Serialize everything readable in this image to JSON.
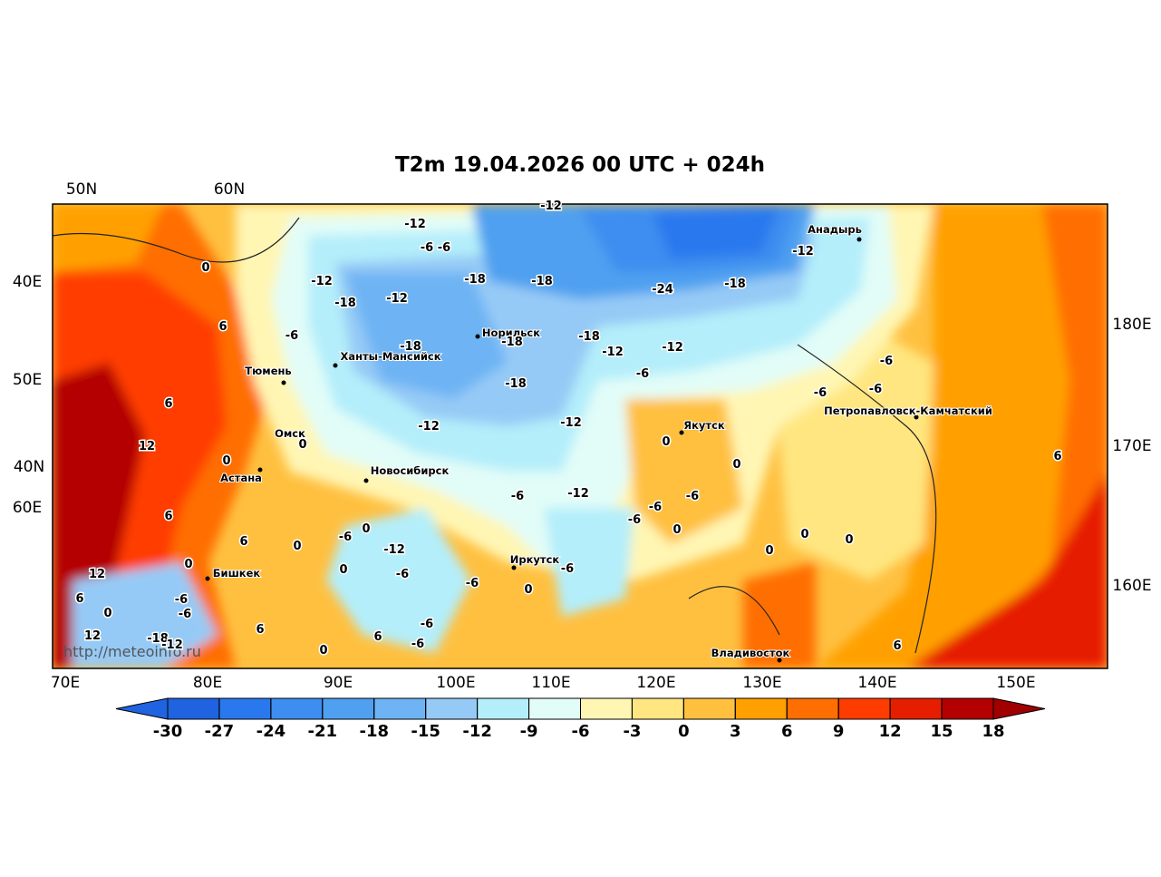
{
  "title": "T2m 19.04.2026 00 UTC + 024h",
  "watermark": "http://meteoinfo.ru",
  "top_labels": [
    "50N",
    "60N"
  ],
  "left_labels": [
    "40E",
    "50E",
    "40N",
    "60E"
  ],
  "right_labels": [
    "180E",
    "170E",
    "160E"
  ],
  "bottom_labels": [
    "70E",
    "80E",
    "90E",
    "100E",
    "110E",
    "120E",
    "130E",
    "140E",
    "150E"
  ],
  "cities": [
    "Анадырь",
    "Норильск",
    "Ханты-Мансийск",
    "Тюмень",
    "Якутск",
    "Петропавловск-Камчатский",
    "Омск",
    "Астана",
    "Новосибирск",
    "Бишкек",
    "Иркутск",
    "Владивосток"
  ],
  "contour_labels": [
    -12,
    -6,
    -6,
    -12,
    -12,
    -18,
    -12,
    -18,
    -18,
    -24,
    -18,
    -12,
    -18,
    -18,
    -18,
    -12,
    -12,
    -6,
    -18,
    -12,
    -12,
    -6,
    -6,
    -6,
    0,
    6,
    -6,
    6,
    12,
    0,
    0,
    0,
    0,
    -6,
    -12,
    -6,
    -6,
    -6,
    0,
    6,
    6,
    0,
    -6,
    0,
    -12,
    0,
    -6,
    -6,
    -6,
    0,
    0,
    0,
    0,
    6,
    12,
    6,
    0,
    -6,
    -6,
    0,
    6,
    6,
    -6,
    -6,
    0,
    6,
    12,
    -18,
    -12
  ],
  "colorbar": {
    "ticks": [
      -30,
      -27,
      -24,
      -21,
      -18,
      -15,
      -12,
      -9,
      -6,
      -3,
      0,
      3,
      6,
      9,
      12,
      15,
      18
    ],
    "colors": [
      "#1f63e0",
      "#2a78ee",
      "#3d8ef0",
      "#4fa0f0",
      "#6eb4f4",
      "#96caf6",
      "#b4eefa",
      "#e2fdf8",
      "#fff6b4",
      "#ffe680",
      "#ffc040",
      "#ffa000",
      "#ff6e00",
      "#ff3c00",
      "#e61e00",
      "#b40000"
    ],
    "under_color": "#1f63e0",
    "over_color": "#a00000"
  }
}
